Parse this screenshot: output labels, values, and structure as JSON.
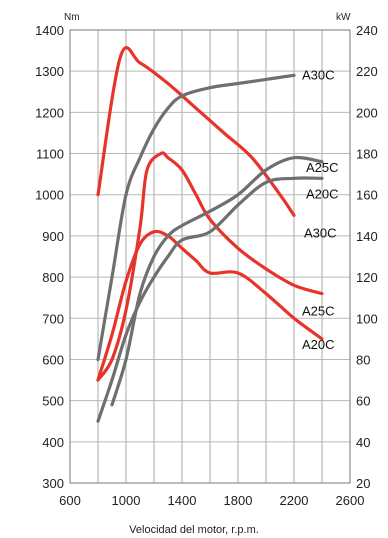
{
  "chart_data": {
    "type": "line",
    "title": "",
    "xlabel": "Velocidad del motor, r.p.m.",
    "ylabel_left": "Nm",
    "ylabel_right": "kW",
    "xlim": [
      600,
      2600
    ],
    "ylim_left": [
      300,
      1400
    ],
    "ylim_right": [
      20,
      240
    ],
    "x_ticks": [
      600,
      1000,
      1400,
      1800,
      2200,
      2600
    ],
    "y_ticks_left": [
      300,
      400,
      500,
      600,
      700,
      800,
      900,
      1000,
      1100,
      1200,
      1300,
      1400
    ],
    "y_ticks_right": [
      20,
      40,
      60,
      80,
      100,
      120,
      140,
      160,
      180,
      200,
      220,
      240
    ],
    "grid": true,
    "colors": {
      "torque": "#e8332a",
      "power": "#6f6f6f",
      "grid": "#b9b9b9"
    },
    "series": [
      {
        "name": "A30C",
        "quantity": "torque",
        "axis": "left",
        "x": [
          800,
          960,
          1100,
          1300,
          1500,
          1700,
          1900,
          2100,
          2200
        ],
        "y": [
          1000,
          1335,
          1320,
          1270,
          1210,
          1150,
          1090,
          1000,
          950
        ]
      },
      {
        "name": "A25C",
        "quantity": "torque",
        "axis": "left",
        "x": [
          800,
          900,
          1000,
          1100,
          1150,
          1250,
          1300,
          1400,
          1500,
          1600,
          1800,
          2000,
          2200,
          2400
        ],
        "y": [
          550,
          600,
          720,
          920,
          1060,
          1100,
          1090,
          1060,
          1000,
          940,
          870,
          820,
          780,
          760
        ]
      },
      {
        "name": "A20C",
        "quantity": "torque",
        "axis": "left",
        "x": [
          800,
          900,
          1000,
          1100,
          1200,
          1300,
          1400,
          1500,
          1600,
          1800,
          2000,
          2200,
          2400
        ],
        "y": [
          550,
          660,
          790,
          880,
          910,
          900,
          870,
          840,
          810,
          810,
          760,
          700,
          650
        ]
      },
      {
        "name": "A30C",
        "quantity": "power",
        "axis": "right",
        "x": [
          800,
          900,
          1000,
          1100,
          1200,
          1300,
          1400,
          1600,
          1800,
          2000,
          2200
        ],
        "y": [
          80,
          120,
          160,
          178,
          192,
          202,
          208,
          212,
          214,
          216,
          218
        ]
      },
      {
        "name": "A25C",
        "quantity": "power",
        "axis": "right",
        "x": [
          900,
          1000,
          1100,
          1200,
          1300,
          1400,
          1600,
          1800,
          2000,
          2200,
          2400
        ],
        "y": [
          58,
          80,
          112,
          130,
          140,
          145,
          152,
          160,
          172,
          178,
          176
        ]
      },
      {
        "name": "A20C",
        "quantity": "power",
        "axis": "right",
        "x": [
          800,
          900,
          1000,
          1100,
          1200,
          1300,
          1400,
          1600,
          1800,
          2000,
          2200,
          2400
        ],
        "y": [
          50,
          70,
          92,
          108,
          120,
          130,
          138,
          142,
          155,
          166,
          168,
          168
        ]
      }
    ]
  }
}
